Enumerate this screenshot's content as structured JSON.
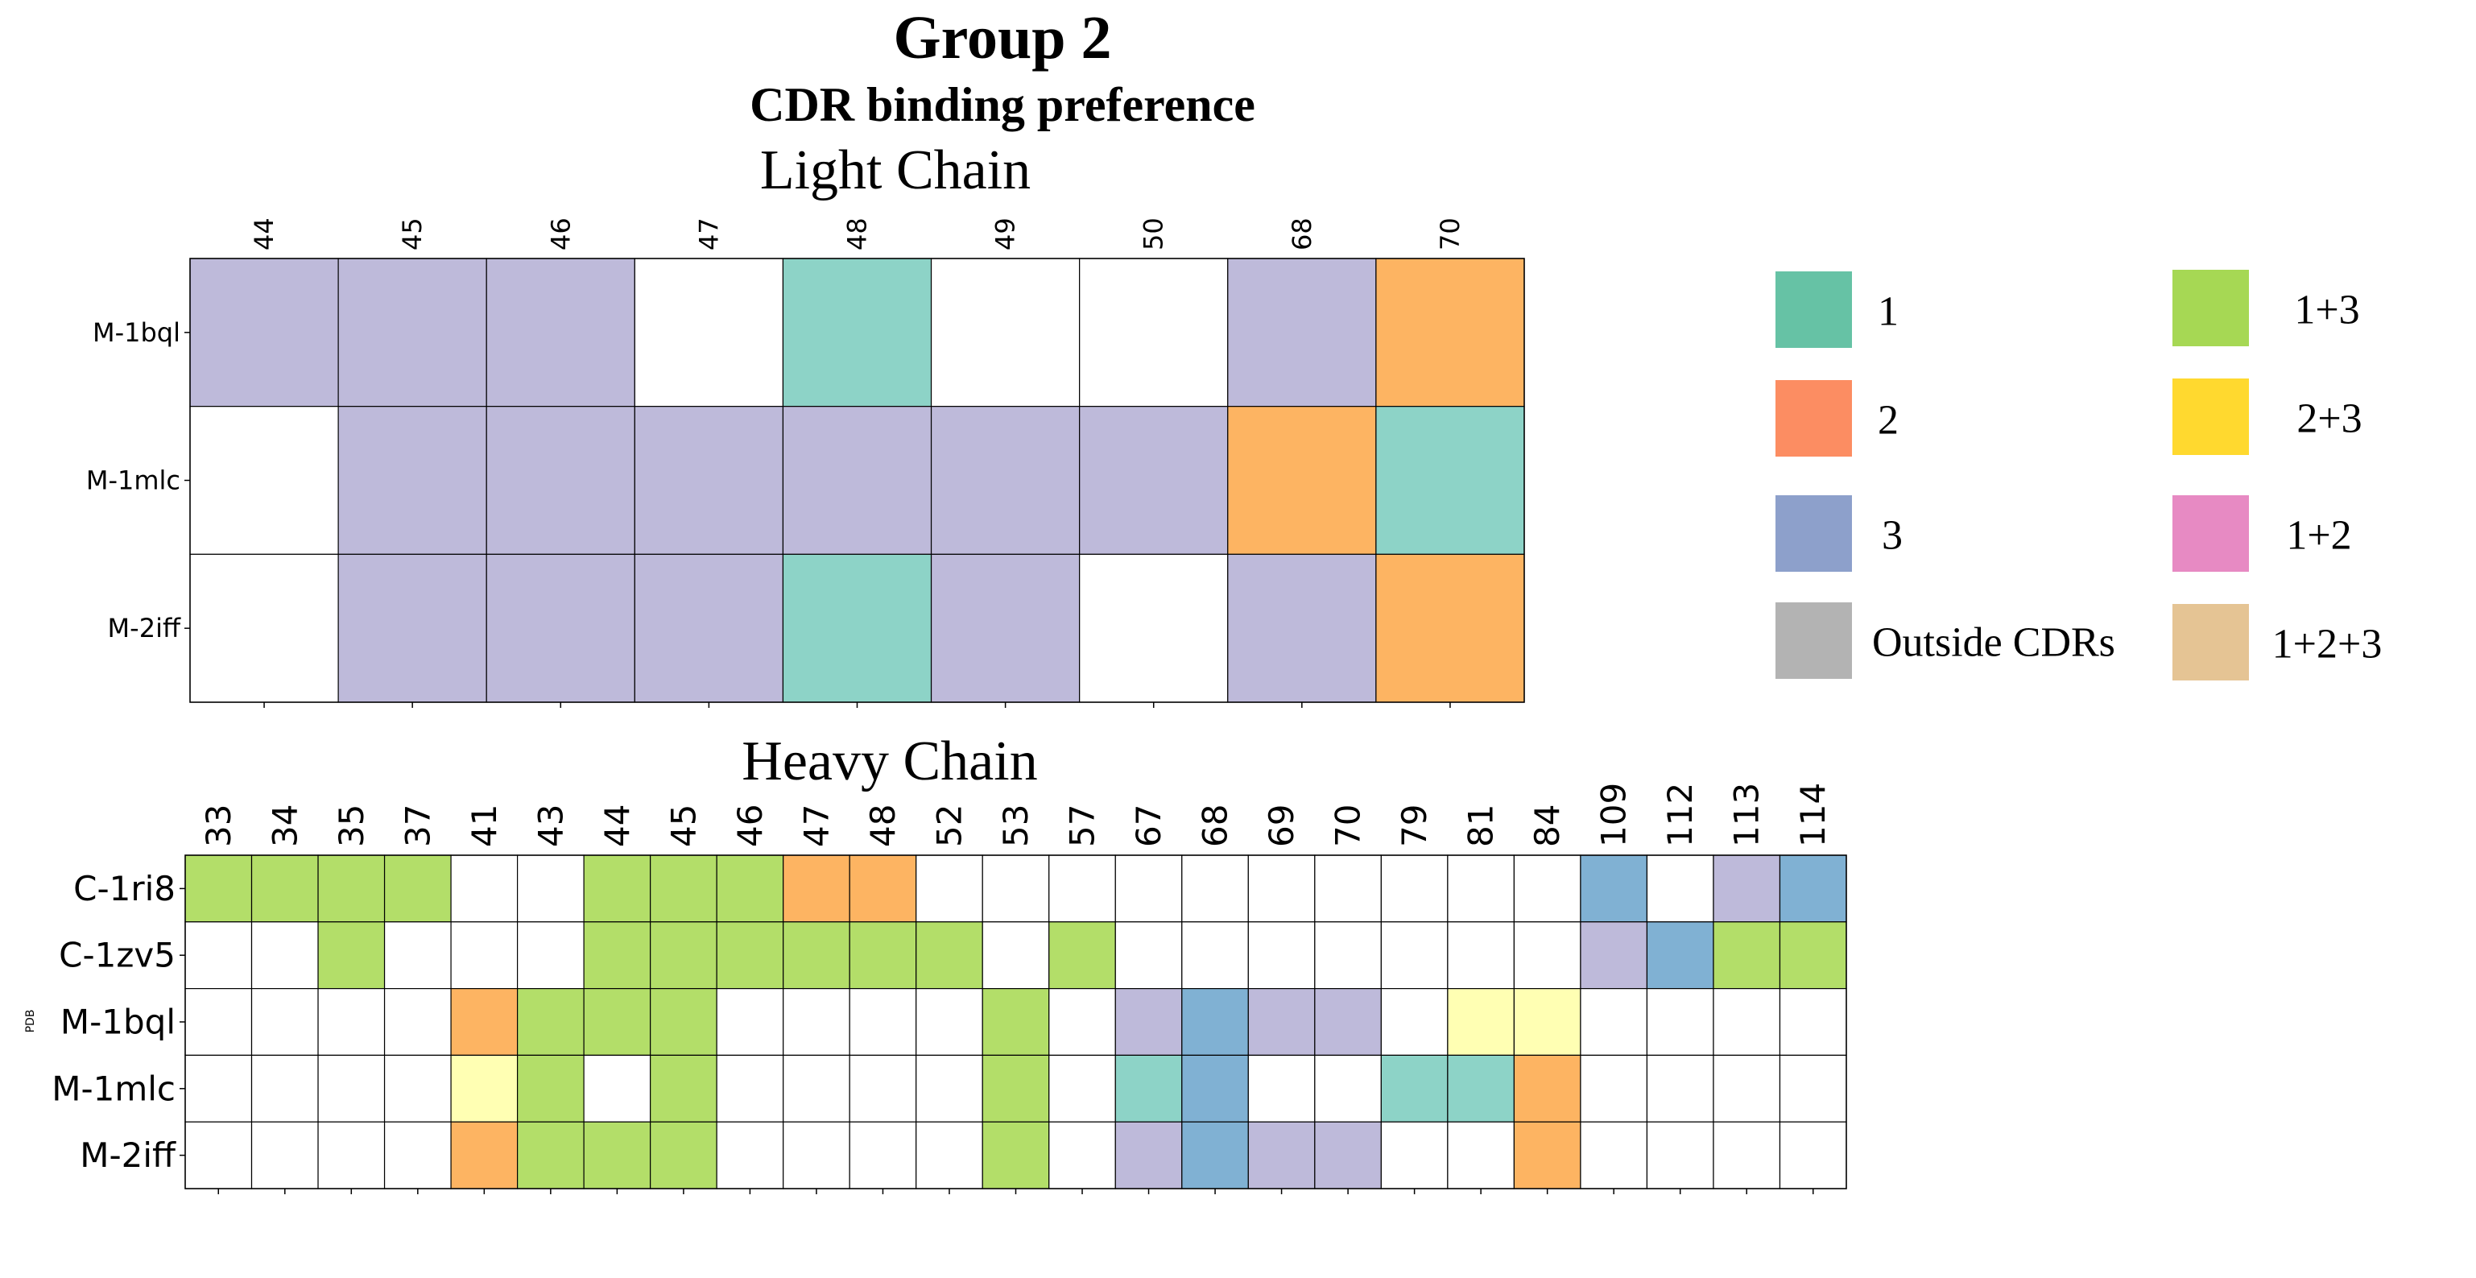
{
  "title": "Group 2",
  "subtitle": "CDR binding preference",
  "y_axis_label": "PDB",
  "palette": {
    "1": "#8dd3c7",
    "2": "#fdb462",
    "3": "#bebada",
    "1+3": "#b3de69",
    "2+3": "#ffffb3",
    "H3": "#80b1d3",
    "empty": "#ffffff"
  },
  "legend": {
    "items": [
      {
        "label": "1",
        "color": "#66c2a5"
      },
      {
        "label": "2",
        "color": "#fc8d62"
      },
      {
        "label": "3",
        "color": "#8da0cb"
      },
      {
        "label": "Outside CDRs",
        "color": "#b3b3b3"
      },
      {
        "label": "1+3",
        "color": "#a6d854"
      },
      {
        "label": "2+3",
        "color": "#ffd92f"
      },
      {
        "label": "1+2",
        "color": "#e78ac3"
      },
      {
        "label": "1+2+3",
        "color": "#e5c494"
      }
    ]
  },
  "chart_data": [
    {
      "type": "heatmap",
      "title": "Light Chain",
      "columns": [
        "44",
        "45",
        "46",
        "47",
        "48",
        "49",
        "50",
        "68",
        "70"
      ],
      "rows": [
        "M-1bql",
        "M-1mlc",
        "M-2iff"
      ],
      "cells": [
        [
          "3",
          "3",
          "3",
          "",
          "1",
          "",
          "",
          "3",
          "2"
        ],
        [
          "",
          "3",
          "3",
          "3",
          "3",
          "3",
          "3",
          "2",
          "1"
        ],
        [
          "",
          "3",
          "3",
          "3",
          "1",
          "3",
          "",
          "3",
          "2"
        ]
      ]
    },
    {
      "type": "heatmap",
      "title": "Heavy Chain",
      "columns": [
        "33",
        "34",
        "35",
        "37",
        "41",
        "43",
        "44",
        "45",
        "46",
        "47",
        "48",
        "52",
        "53",
        "57",
        "67",
        "68",
        "69",
        "70",
        "79",
        "81",
        "84",
        "109",
        "112",
        "113",
        "114"
      ],
      "rows": [
        "C-1ri8",
        "C-1zv5",
        "M-1bql",
        "M-1mlc",
        "M-2iff"
      ],
      "cells": [
        [
          "1+3",
          "1+3",
          "1+3",
          "1+3",
          "",
          "",
          "1+3",
          "1+3",
          "1+3",
          "2",
          "2",
          "",
          "",
          "",
          "",
          "",
          "",
          "",
          "",
          "",
          "",
          "H3",
          "",
          "3",
          "H3"
        ],
        [
          "",
          "",
          "1+3",
          "",
          "",
          "",
          "1+3",
          "1+3",
          "1+3",
          "1+3",
          "1+3",
          "1+3",
          "",
          "1+3",
          "",
          "",
          "",
          "",
          "",
          "",
          "",
          "3",
          "H3",
          "1+3",
          "1+3"
        ],
        [
          "",
          "",
          "",
          "",
          "2",
          "1+3",
          "1+3",
          "1+3",
          "",
          "",
          "",
          "",
          "1+3",
          "",
          "3",
          "H3",
          "3",
          "3",
          "",
          "2+3",
          "2+3",
          "",
          "",
          "",
          ""
        ],
        [
          "",
          "",
          "",
          "",
          "2+3",
          "1+3",
          "",
          "1+3",
          "",
          "",
          "",
          "",
          "1+3",
          "",
          "1",
          "H3",
          "",
          "",
          "1",
          "1",
          "2",
          "",
          "",
          "",
          ""
        ],
        [
          "",
          "",
          "",
          "",
          "2",
          "1+3",
          "1+3",
          "1+3",
          "",
          "",
          "",
          "",
          "1+3",
          "",
          "3",
          "H3",
          "3",
          "3",
          "",
          "",
          "2",
          "",
          "",
          "",
          ""
        ]
      ]
    }
  ]
}
